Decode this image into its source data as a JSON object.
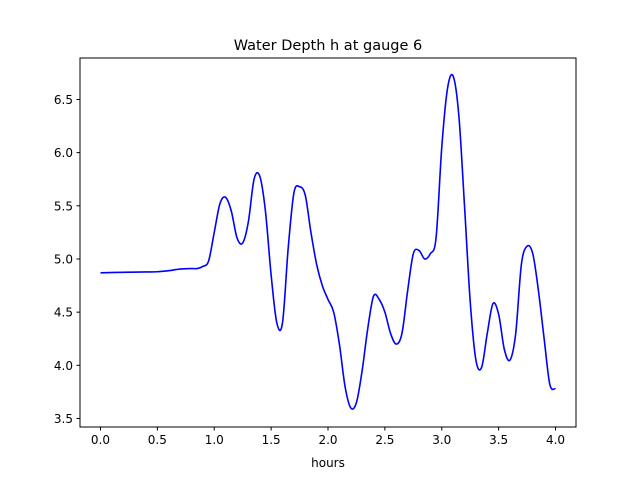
{
  "chart_data": {
    "type": "line",
    "title": "Water Depth h at gauge 6",
    "xlabel": "hours",
    "ylabel": "",
    "xlim": [
      -0.18,
      4.18
    ],
    "ylim": [
      3.42,
      6.89
    ],
    "xticks": [
      0.0,
      0.5,
      1.0,
      1.5,
      2.0,
      2.5,
      3.0,
      3.5,
      4.0
    ],
    "xtick_labels": [
      "0.0",
      "0.5",
      "1.0",
      "1.5",
      "2.0",
      "2.5",
      "3.0",
      "3.5",
      "4.0"
    ],
    "yticks": [
      3.5,
      4.0,
      4.5,
      5.0,
      5.5,
      6.0,
      6.5
    ],
    "ytick_labels": [
      "3.5",
      "4.0",
      "4.5",
      "5.0",
      "5.5",
      "6.0",
      "6.5"
    ],
    "grid": false,
    "legend": "none",
    "series": [
      {
        "color": "#0000ff",
        "x": [
          0.0,
          0.2,
          0.4,
          0.5,
          0.6,
          0.7,
          0.8,
          0.85,
          0.9,
          0.95,
          1.0,
          1.05,
          1.1,
          1.15,
          1.2,
          1.25,
          1.3,
          1.35,
          1.4,
          1.45,
          1.5,
          1.55,
          1.6,
          1.65,
          1.7,
          1.75,
          1.8,
          1.85,
          1.9,
          1.95,
          2.0,
          2.05,
          2.1,
          2.15,
          2.2,
          2.25,
          2.3,
          2.35,
          2.4,
          2.45,
          2.5,
          2.55,
          2.6,
          2.65,
          2.7,
          2.75,
          2.8,
          2.85,
          2.9,
          2.95,
          3.0,
          3.05,
          3.1,
          3.15,
          3.2,
          3.25,
          3.3,
          3.35,
          3.4,
          3.45,
          3.5,
          3.55,
          3.6,
          3.65,
          3.7,
          3.75,
          3.8,
          3.85,
          3.9,
          3.95,
          4.0
        ],
        "y": [
          4.87,
          4.875,
          4.878,
          4.88,
          4.89,
          4.905,
          4.91,
          4.91,
          4.93,
          4.98,
          5.25,
          5.52,
          5.58,
          5.45,
          5.2,
          5.15,
          5.35,
          5.75,
          5.78,
          5.45,
          4.85,
          4.4,
          4.4,
          5.1,
          5.62,
          5.68,
          5.6,
          5.25,
          4.95,
          4.75,
          4.62,
          4.5,
          4.2,
          3.8,
          3.6,
          3.65,
          3.95,
          4.35,
          4.65,
          4.62,
          4.5,
          4.3,
          4.2,
          4.3,
          4.7,
          5.05,
          5.08,
          5.0,
          5.05,
          5.2,
          6.05,
          6.6,
          6.72,
          6.35,
          5.5,
          4.6,
          4.05,
          3.98,
          4.3,
          4.58,
          4.48,
          4.15,
          4.05,
          4.3,
          4.95,
          5.12,
          5.05,
          4.7,
          4.25,
          3.82,
          3.78
        ]
      }
    ]
  }
}
